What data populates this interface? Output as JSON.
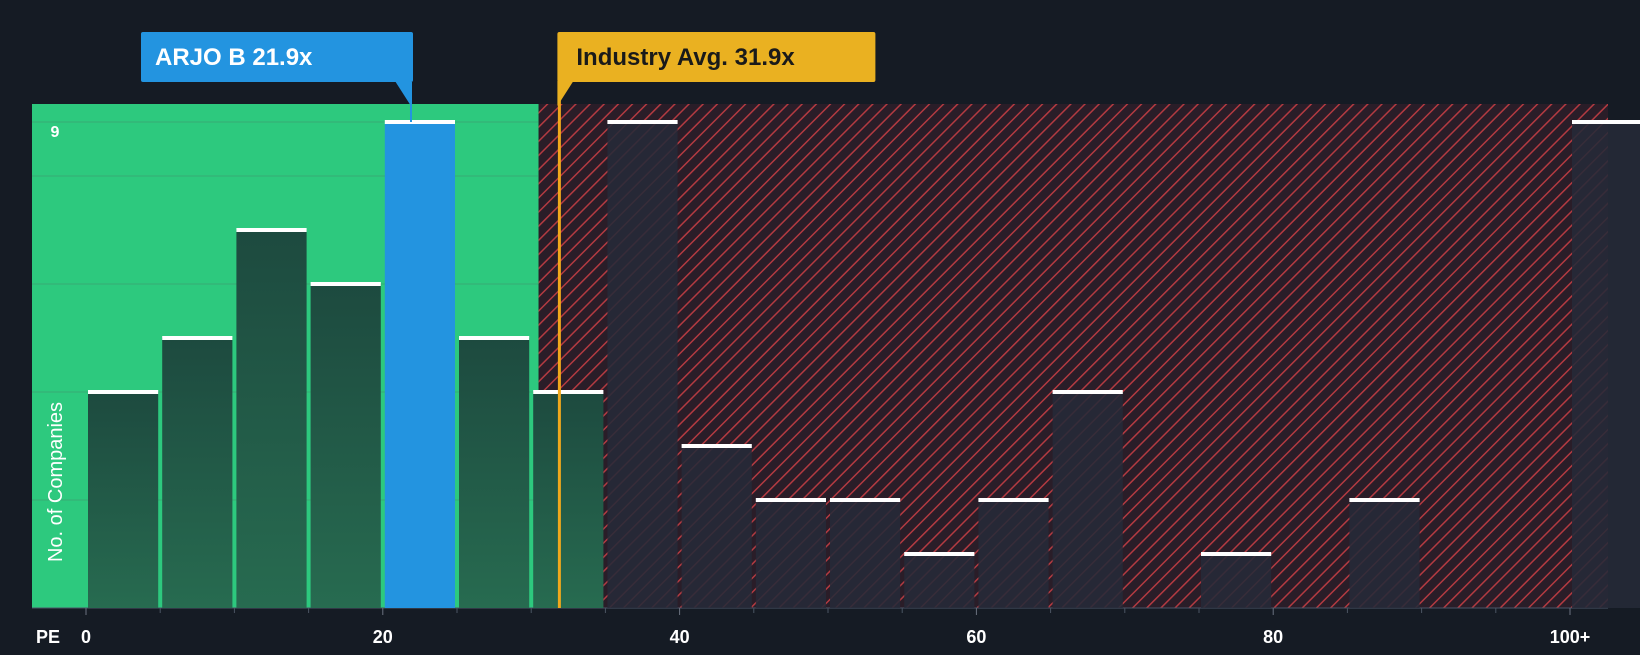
{
  "chart_data": {
    "type": "bar",
    "title": "",
    "xlabel": "PE",
    "ylabel": "No. of Companies",
    "x_ticks": [
      "0",
      "20",
      "40",
      "60",
      "80",
      "100+"
    ],
    "x_tick_values": [
      0,
      20,
      40,
      60,
      80,
      100
    ],
    "xlim": [
      0,
      105
    ],
    "ylim": [
      0,
      9
    ],
    "y_tick_labels": [
      "9"
    ],
    "bin_width": 5,
    "bins": [
      {
        "start": 0,
        "count": 4
      },
      {
        "start": 5,
        "count": 5
      },
      {
        "start": 10,
        "count": 7
      },
      {
        "start": 15,
        "count": 6
      },
      {
        "start": 20,
        "count": 9,
        "highlight": true
      },
      {
        "start": 25,
        "count": 5
      },
      {
        "start": 30,
        "count": 4
      },
      {
        "start": 35,
        "count": 9
      },
      {
        "start": 40,
        "count": 3
      },
      {
        "start": 45,
        "count": 2
      },
      {
        "start": 50,
        "count": 2
      },
      {
        "start": 55,
        "count": 1
      },
      {
        "start": 60,
        "count": 2
      },
      {
        "start": 65,
        "count": 4
      },
      {
        "start": 70,
        "count": 0
      },
      {
        "start": 75,
        "count": 1
      },
      {
        "start": 80,
        "count": 0
      },
      {
        "start": 85,
        "count": 2
      },
      {
        "start": 90,
        "count": 0
      },
      {
        "start": 95,
        "count": 0
      },
      {
        "start": 100,
        "count": 9
      }
    ],
    "company": {
      "label": "ARJO B 21.9x",
      "value": 21.9
    },
    "industry_avg": {
      "label": "Industry Avg. 31.9x",
      "value": 31.9
    },
    "fair_zone_end": 30.5,
    "colors": {
      "background": "#151b24",
      "fair_zone": "#2dc97e",
      "bar_fair": "#1e4a3e",
      "bar_fair_bottom": "#256a4f",
      "bar_highlight": "#2394e0",
      "bar_overvalued": "#262a38",
      "hatch": "#b33a41",
      "hatch_bg": "#2a1d28",
      "company_label_bg": "#2394e0",
      "industry_label_bg": "#eab121",
      "industry_line": "#f0a81c",
      "bar_cap": "#ffffff",
      "axis_text": "#ffffff",
      "grid": "#3b9f70"
    }
  }
}
